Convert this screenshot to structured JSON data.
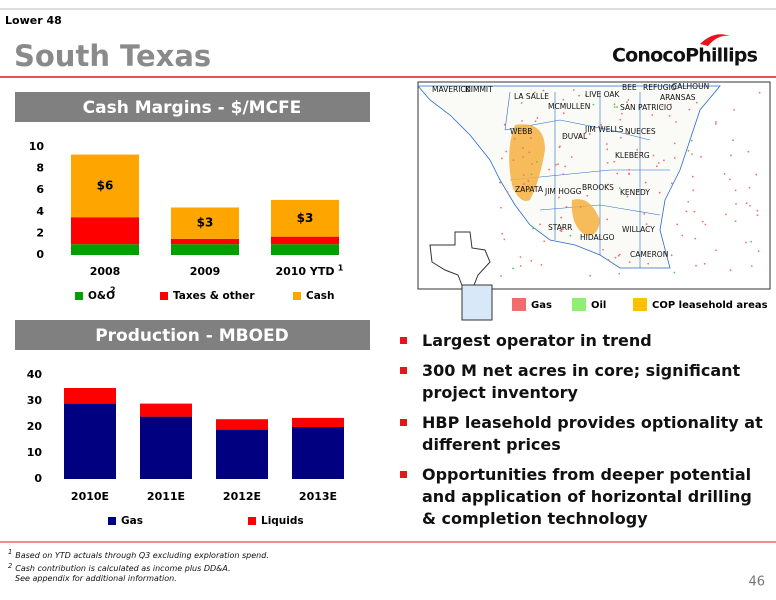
{
  "header": {
    "section": "Lower 48",
    "title": "South Texas",
    "logo": "ConocoPhillips"
  },
  "chart_data": [
    {
      "type": "bar",
      "stacked": true,
      "title": "Cash Margins - $/MCFE",
      "categories": [
        "2008",
        "2009",
        "2010 YTD"
      ],
      "category_notes": [
        null,
        null,
        "1"
      ],
      "series": [
        {
          "name": "O&O",
          "note": "2",
          "color": "#00a000",
          "values": [
            1,
            1,
            1
          ]
        },
        {
          "name": "Taxes & other",
          "color": "#ff0000",
          "values": [
            2.5,
            0.5,
            0.7
          ]
        },
        {
          "name": "Cash",
          "color": "#ffa500",
          "values": [
            5.8,
            2.9,
            3.4
          ],
          "value_labels": [
            "$6",
            "$3",
            "$3"
          ]
        }
      ],
      "ylim": [
        0,
        10
      ],
      "yticks": [
        0,
        2,
        4,
        6,
        8,
        10
      ],
      "grid": false
    },
    {
      "type": "bar",
      "stacked": true,
      "title": "Production - MBOED",
      "categories": [
        "2010E",
        "2011E",
        "2012E",
        "2013E"
      ],
      "series": [
        {
          "name": "Gas",
          "color": "#000080",
          "values": [
            29,
            24,
            19,
            20
          ]
        },
        {
          "name": "Liquids",
          "color": "#ff0000",
          "values": [
            6,
            5,
            4,
            3.5
          ]
        }
      ],
      "ylim": [
        0,
        40
      ],
      "yticks": [
        0,
        10,
        20,
        30,
        40
      ],
      "grid": false
    }
  ],
  "map": {
    "counties": [
      "MAVERICK",
      "DIMMIT",
      "LA SALLE",
      "MCMULLEN",
      "LIVE OAK",
      "BEE",
      "REFUGIO",
      "CALHOUN",
      "ARANSAS",
      "SAN PATRICIO",
      "WEBB",
      "DUVAL",
      "JIM WELLS",
      "NUECES",
      "KLEBERG",
      "ZAPATA",
      "JIM HOGG",
      "BROOKS",
      "KENEDY",
      "STARR",
      "HIDALGO",
      "WILLACY",
      "CAMERON"
    ],
    "legend": [
      {
        "name": "Gas",
        "color": "#f26c6c"
      },
      {
        "name": "Oil",
        "color": "#90ee70"
      },
      {
        "name": "COP leasehold areas",
        "color": "#ffc000"
      }
    ]
  },
  "bullets": [
    "Largest operator in trend",
    "300 M net acres in core; significant project inventory",
    "HBP leasehold provides optionality at different prices",
    "Opportunities from deeper potential and application of horizontal drilling & completion technology"
  ],
  "footnotes": [
    {
      "mark": "1",
      "text": "Based on YTD actuals through Q3 excluding exploration spend."
    },
    {
      "mark": "2",
      "text": "Cash contribution is calculated as income plus DD&A."
    },
    {
      "text": "See appendix for additional information."
    }
  ],
  "page_number": "46"
}
